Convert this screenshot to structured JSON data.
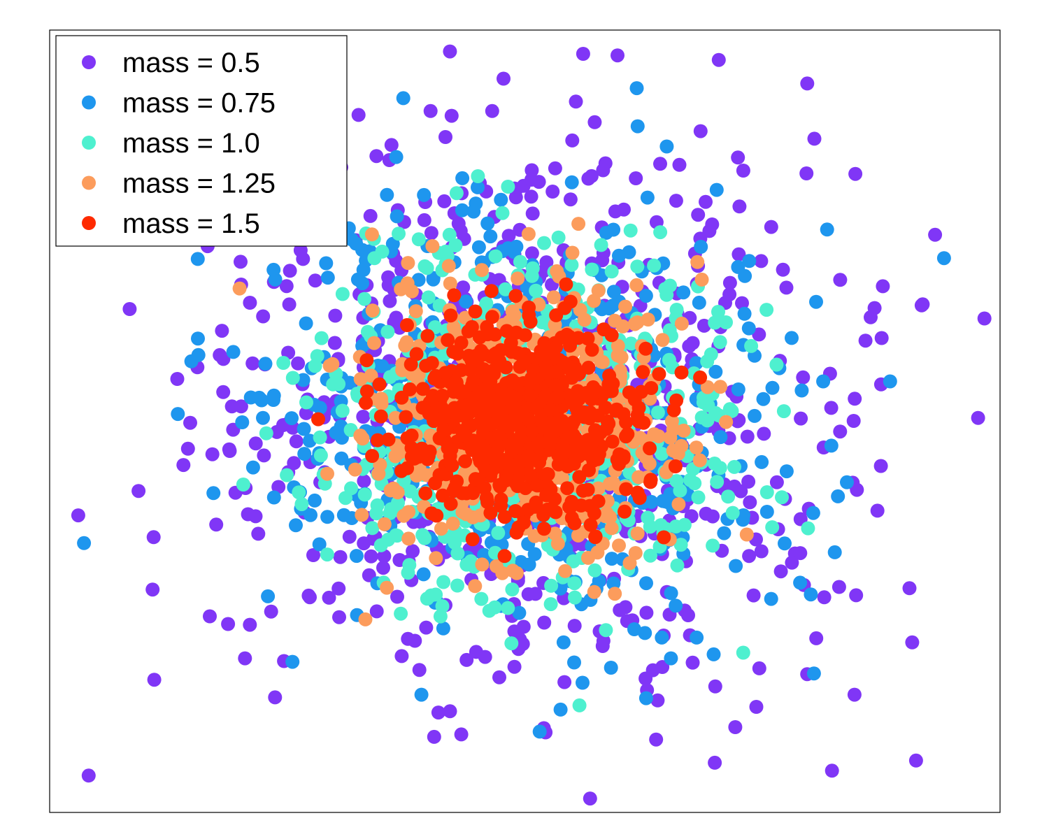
{
  "chart_data": {
    "type": "scatter",
    "title": "",
    "xlabel": "",
    "ylabel": "",
    "grid": false,
    "axes_ticks": false,
    "legend_placement": "top-left",
    "x_range": [
      -3.9,
      3.9
    ],
    "y_range": [
      -3.9,
      3.9
    ],
    "series": [
      {
        "name": "mass = 0.5",
        "label": "mass = 0.5",
        "color": "#8036f6",
        "mass": 0.5,
        "count": 700,
        "std": 1.5
      },
      {
        "name": "mass = 0.75",
        "label": "mass = 0.75",
        "color": "#1e96ee",
        "mass": 0.75,
        "count": 600,
        "std": 1.1
      },
      {
        "name": "mass = 1.0",
        "label": "mass = 1.0",
        "color": "#4ef0cf",
        "mass": 1.0,
        "count": 600,
        "std": 0.85
      },
      {
        "name": "mass = 1.25",
        "label": "mass = 1.25",
        "color": "#fc9c5c",
        "mass": 1.25,
        "count": 600,
        "std": 0.65
      },
      {
        "name": "mass = 1.5",
        "label": "mass = 1.5",
        "color": "#fe2a00",
        "mass": 1.5,
        "count": 600,
        "std": 0.48
      }
    ],
    "distribution": "2D Gaussian point clouds centred at (0, 0); tighter spread for larger mass"
  }
}
